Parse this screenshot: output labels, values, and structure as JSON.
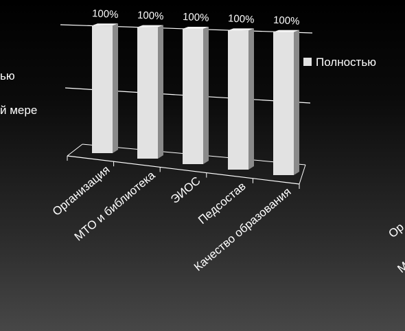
{
  "chart_data": {
    "type": "bar",
    "title": "",
    "xlabel": "",
    "ylabel": "",
    "ylim": [
      0,
      100
    ],
    "grid": true,
    "legend_position": "right",
    "categories": [
      "Организация",
      "МТО и библиотека",
      "ЭИОС",
      "Педсостав",
      "Качество образования"
    ],
    "series": [
      {
        "name": "Полностью",
        "values": [
          100,
          100,
          100,
          100,
          100
        ]
      }
    ],
    "data_labels": [
      "100%",
      "100%",
      "100%",
      "100%",
      "100%"
    ],
    "bar_color": "#e2e2e2",
    "bar_side_color": "#8a8a8a"
  },
  "left_chart_fragments": {
    "legend_line_1": "ью",
    "legend_line_2": "й мере"
  },
  "right_chart_fragments": {
    "axis_label_1": "Ор",
    "axis_label_2": "М"
  }
}
